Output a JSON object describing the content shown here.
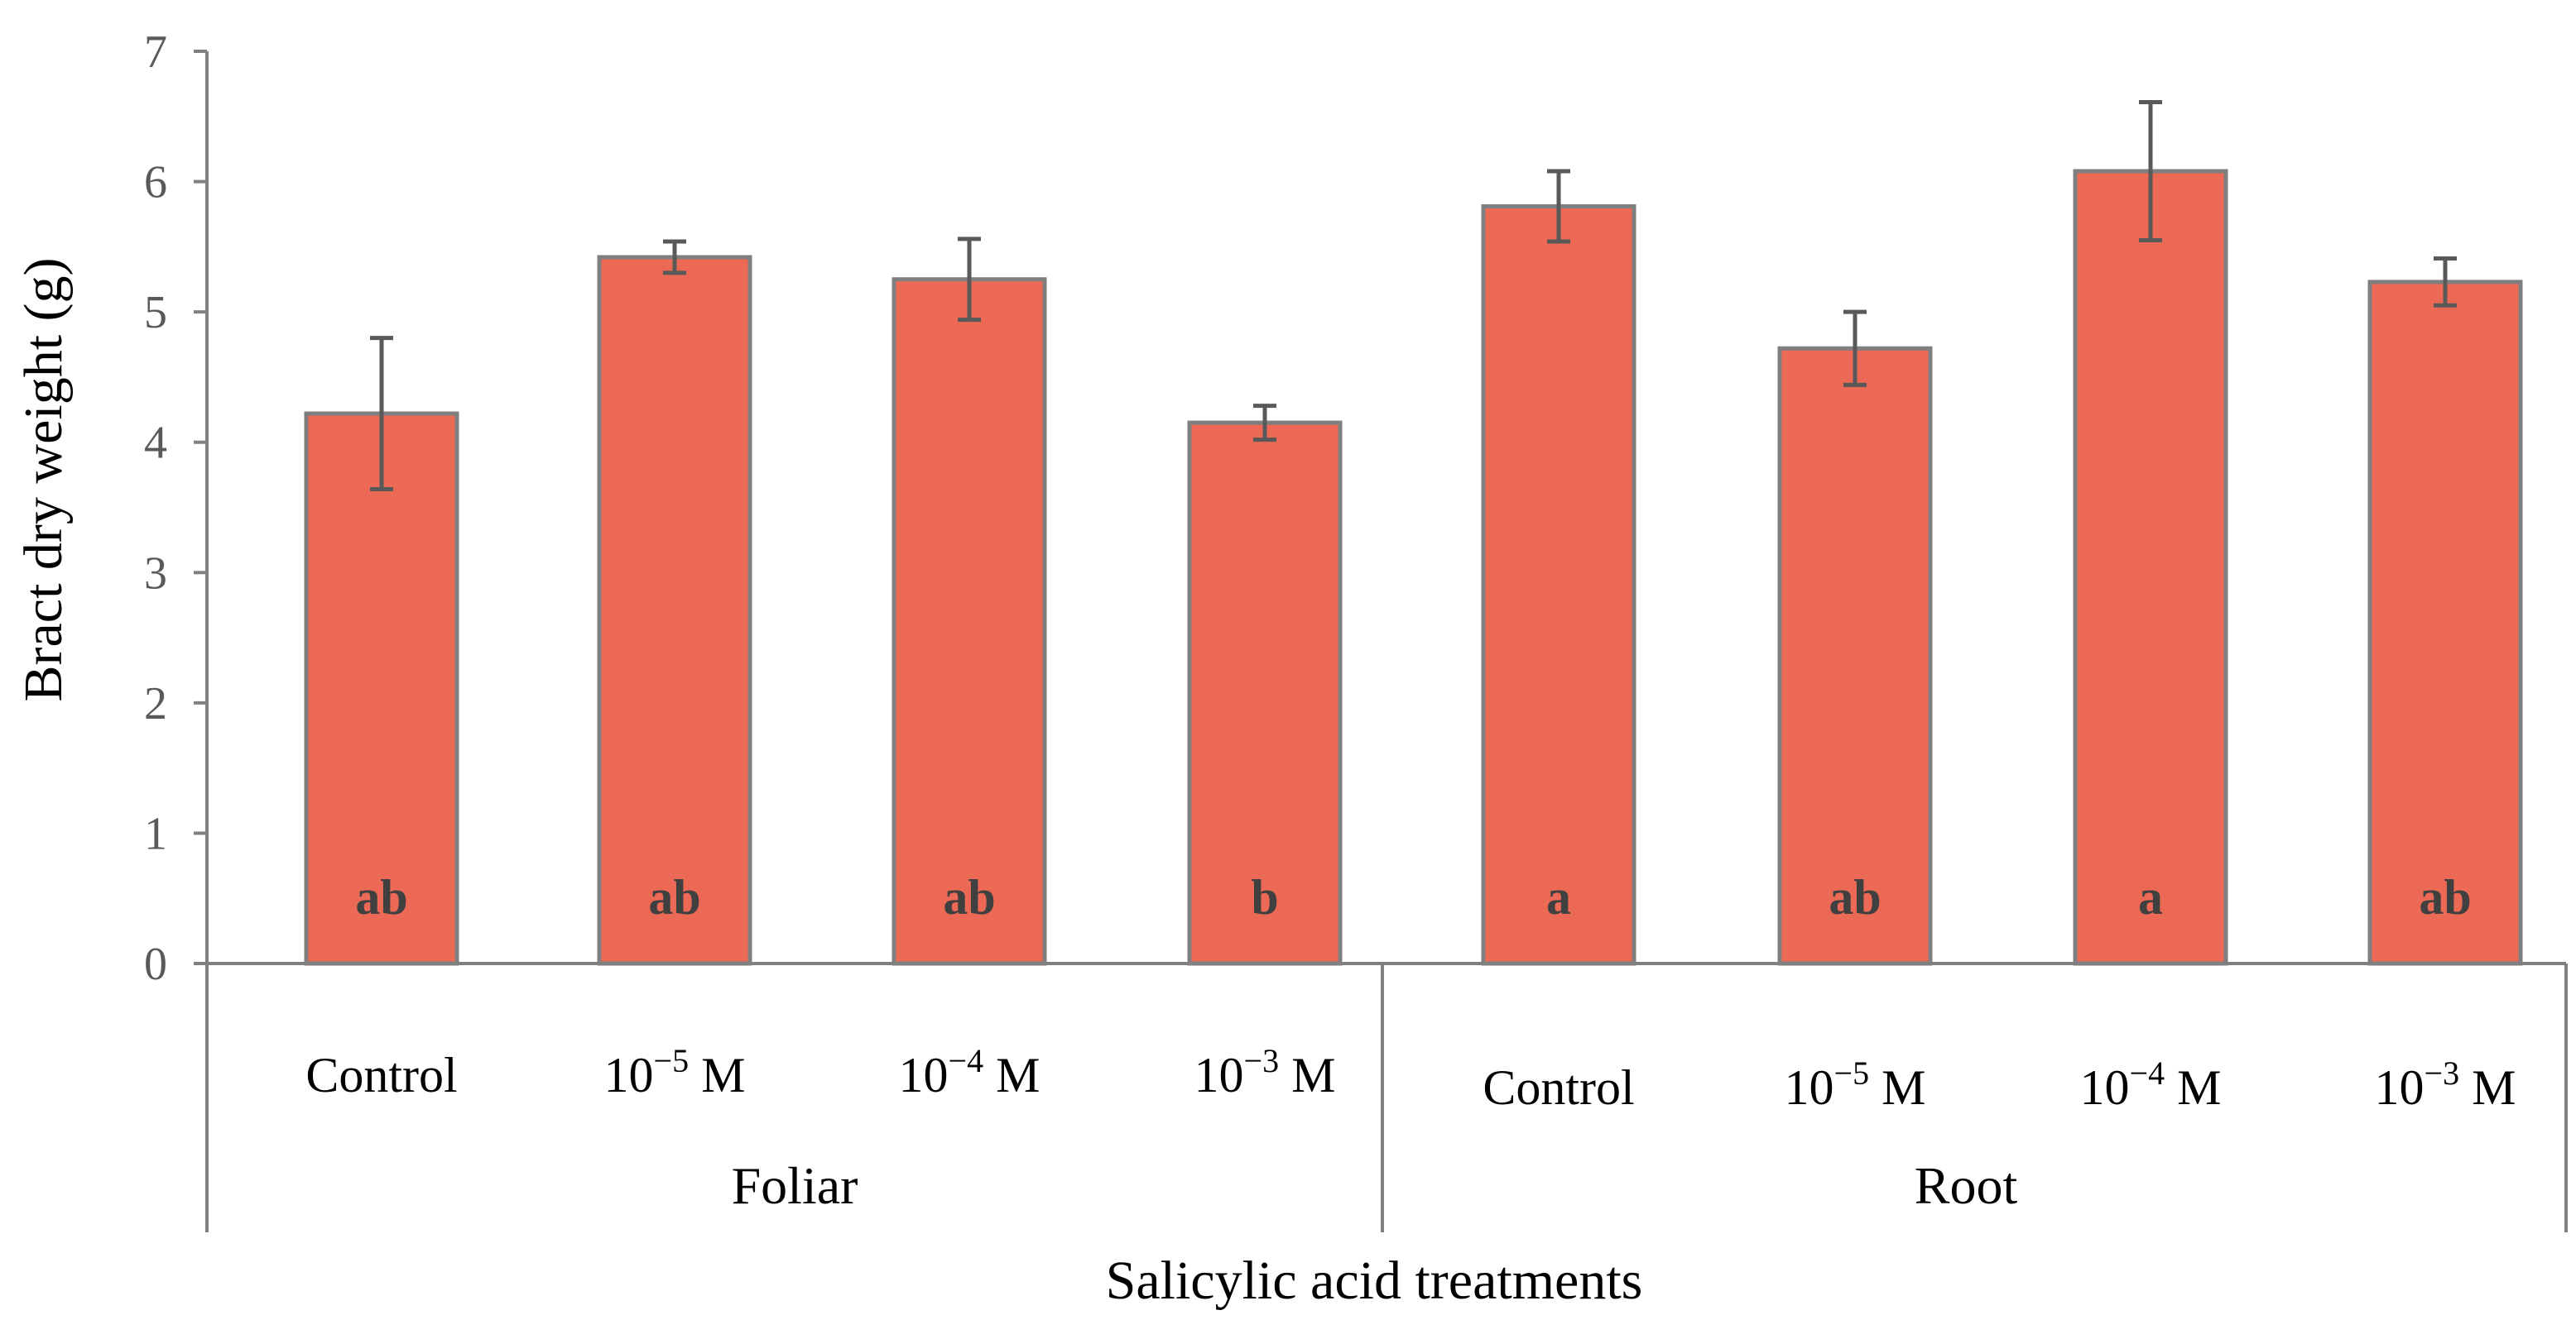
{
  "chart_data": {
    "type": "bar",
    "title": "",
    "ylabel": "Bract dry weight (g)",
    "xlabel": "Salicylic acid treatments",
    "ylim": [
      0,
      7
    ],
    "yticks": [
      "0",
      "1",
      "2",
      "3",
      "4",
      "5",
      "6",
      "7"
    ],
    "bar_color": "#ec6a55",
    "groups": [
      {
        "name": "Foliar",
        "categories": [
          "Control",
          "10",
          "10",
          "10"
        ]
      },
      {
        "name": "Root",
        "categories": [
          "Control",
          "10",
          "10",
          "10"
        ]
      }
    ],
    "exponents": [
      "",
      "−5",
      "−4",
      "−3",
      "",
      "−5",
      "−4",
      "−3"
    ],
    "unit_suffix": "M",
    "values": [
      4.22,
      5.42,
      5.25,
      4.15,
      5.81,
      4.72,
      6.08,
      5.23
    ],
    "errors": [
      0.58,
      0.12,
      0.31,
      0.13,
      0.27,
      0.28,
      0.53,
      0.18
    ],
    "letters": [
      "ab",
      "ab",
      "ab",
      "b",
      "a",
      "ab",
      "a",
      "ab"
    ]
  }
}
